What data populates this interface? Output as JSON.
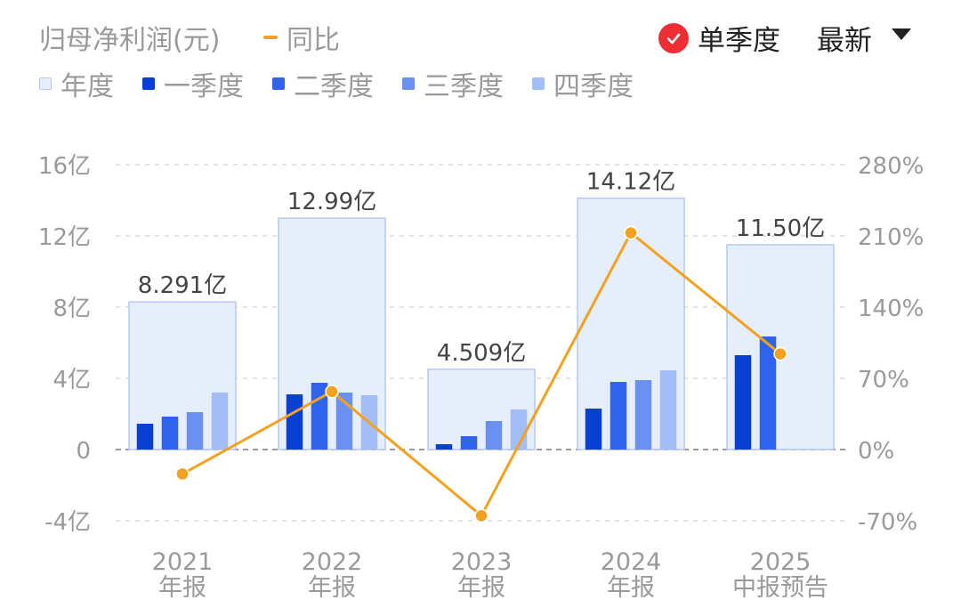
{
  "header": {
    "title": "归母净利润(元)",
    "yoy_label": "同比",
    "single_season_label": "单季度",
    "latest_label": "最新"
  },
  "legend": [
    {
      "label": "年度",
      "color": "#e6eefb"
    },
    {
      "label": "一季度",
      "color": "#0a3fd4"
    },
    {
      "label": "二季度",
      "color": "#2f63ec"
    },
    {
      "label": "三季度",
      "color": "#6a91f2"
    },
    {
      "label": "四季度",
      "color": "#a3bdf7"
    }
  ],
  "chart_data": {
    "type": "bar",
    "categories": [
      "2021",
      "2022",
      "2023",
      "2024",
      "2025"
    ],
    "category_sublabels": [
      "年报",
      "年报",
      "年报",
      "年报",
      "中报预告"
    ],
    "annual_values": [
      8.291,
      12.99,
      4.509,
      14.12,
      11.5
    ],
    "annual_labels": [
      "8.291亿",
      "12.99亿",
      "4.509亿",
      "14.12亿",
      "11.50亿"
    ],
    "quarterly_series": [
      {
        "name": "一季度",
        "color": "#0a3fd4",
        "values": [
          1.45,
          3.1,
          0.3,
          2.3,
          5.3
        ]
      },
      {
        "name": "二季度",
        "color": "#2f63ec",
        "values": [
          1.85,
          3.75,
          0.75,
          3.8,
          6.35
        ]
      },
      {
        "name": "三季度",
        "color": "#6a91f2",
        "values": [
          2.1,
          3.2,
          1.6,
          3.9,
          null
        ]
      },
      {
        "name": "四季度",
        "color": "#a3bdf7",
        "values": [
          3.2,
          3.05,
          2.25,
          4.45,
          null
        ]
      }
    ],
    "yoy_series": {
      "name": "同比",
      "color": "#f2a21f",
      "values": [
        -24,
        57,
        -65,
        213,
        94
      ]
    },
    "y_left": {
      "ticks": [
        -4,
        0,
        4,
        8,
        12,
        16
      ],
      "tick_labels": [
        "-4亿",
        "0",
        "4亿",
        "8亿",
        "12亿",
        "16亿"
      ],
      "ylim": [
        -4,
        16
      ]
    },
    "y_right": {
      "ticks": [
        -70,
        0,
        70,
        140,
        210,
        280
      ],
      "tick_labels": [
        "-70%",
        "0%",
        "70%",
        "140%",
        "210%",
        "280%"
      ],
      "ylim": [
        -70,
        280
      ]
    },
    "grid": true,
    "legend_placement": "top-left"
  }
}
